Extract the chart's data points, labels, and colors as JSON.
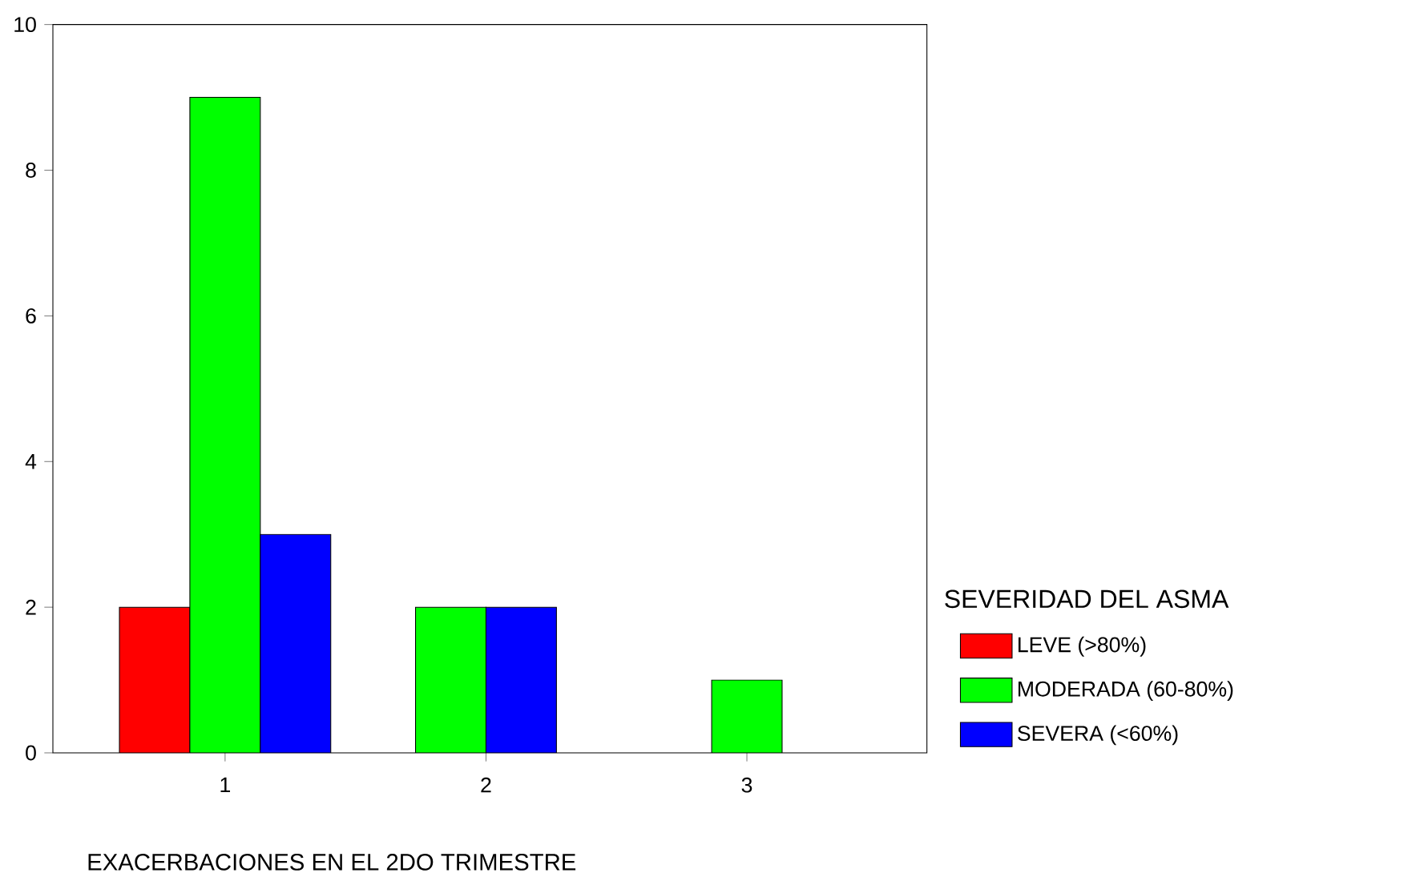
{
  "chart_data": {
    "type": "bar",
    "xlabel": "EXACERBACIONES EN EL 2DO TRIMESTRE",
    "legend_title": "SEVERIDAD DEL ASMA",
    "categories": [
      "1",
      "2",
      "3"
    ],
    "series": [
      {
        "name": "LEVE (>80%)",
        "color": "#ff0000",
        "values": [
          2,
          null,
          null
        ]
      },
      {
        "name": "MODERADA (60-80%)",
        "color": "#00ff00",
        "values": [
          9,
          2,
          1
        ]
      },
      {
        "name": "SEVERA (<60%)",
        "color": "#0000ff",
        "values": [
          3,
          2,
          null
        ]
      }
    ],
    "ylim": [
      0,
      10
    ],
    "yticks": [
      0,
      2,
      4,
      6,
      8,
      10
    ],
    "grid": false,
    "legend": "bottom right"
  }
}
